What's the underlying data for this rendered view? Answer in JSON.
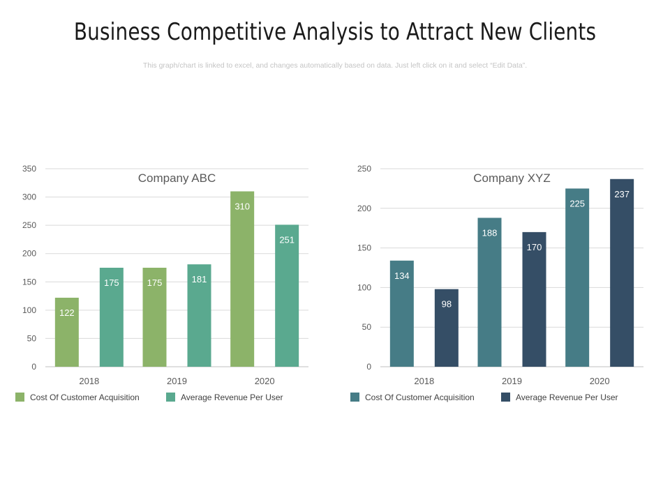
{
  "page": {
    "title": "Business Competitive Analysis to Attract New Clients",
    "subtitle": "This graph/chart is linked to excel, and changes automatically based on data. Just left click on it and select “Edit Data”."
  },
  "chart_data": [
    {
      "type": "bar",
      "title": "Company ABC",
      "categories": [
        "2018",
        "2019",
        "2020"
      ],
      "series": [
        {
          "name": "Cost Of Customer Acquisition",
          "values": [
            122,
            175,
            310
          ],
          "color": "#8cb369"
        },
        {
          "name": "Average Revenue Per User",
          "values": [
            175,
            181,
            251
          ],
          "color": "#5aa98f"
        }
      ],
      "ylim": [
        0,
        350
      ],
      "yticks": [
        0,
        50,
        100,
        150,
        200,
        250,
        300,
        350
      ],
      "grid": true,
      "legend": "bottom-left"
    },
    {
      "type": "bar",
      "title": "Company XYZ",
      "categories": [
        "2018",
        "2019",
        "2020"
      ],
      "series": [
        {
          "name": "Cost Of Customer Acquisition",
          "values": [
            134,
            188,
            225
          ],
          "color": "#467c86"
        },
        {
          "name": "Average Revenue Per User",
          "values": [
            98,
            170,
            237
          ],
          "color": "#354e66"
        }
      ],
      "ylim": [
        0,
        250
      ],
      "yticks": [
        0,
        50,
        100,
        150,
        200,
        250
      ],
      "grid": true,
      "legend": "bottom-left"
    }
  ]
}
